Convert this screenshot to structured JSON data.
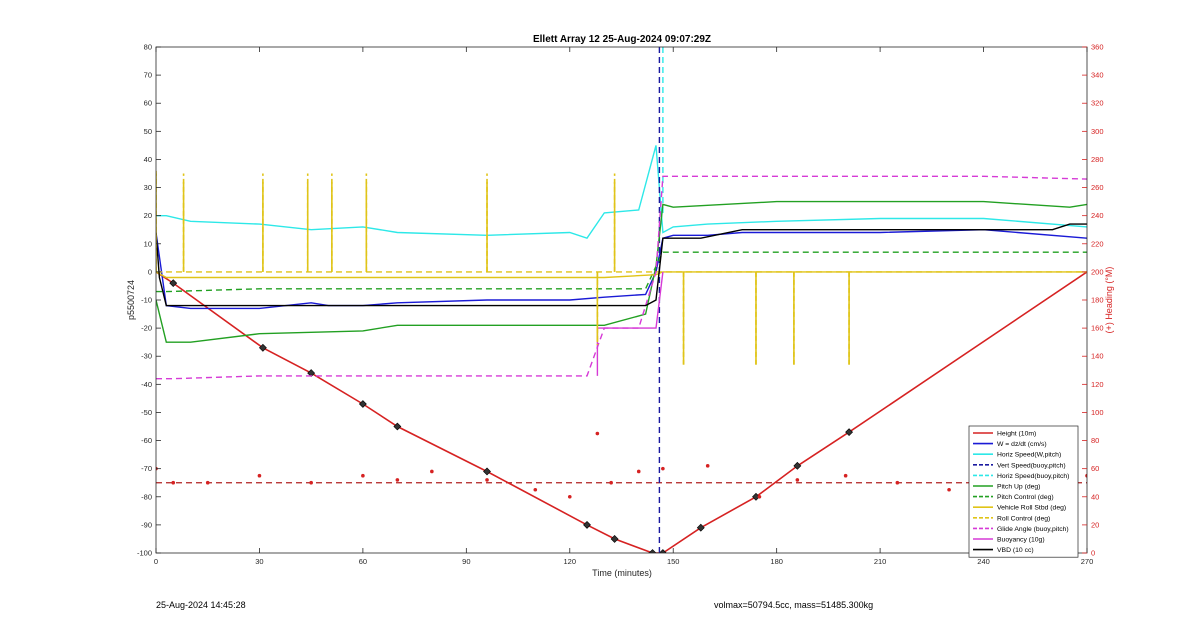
{
  "chart_data": {
    "type": "line",
    "title": "Ellett Array 12 25-Aug-2024 09:07:29Z",
    "xlabel": "Time (minutes)",
    "ylabel": "p5500724",
    "ylabel_right": "(+) Heading (°M)",
    "xlim": [
      0,
      270
    ],
    "ylim": [
      -100,
      80
    ],
    "ylim_right": [
      0,
      360
    ],
    "x_ticks": [
      "0",
      "30",
      "60",
      "90",
      "120",
      "150",
      "180",
      "210",
      "240",
      "270"
    ],
    "y_ticks": [
      "-100",
      "-90",
      "-80",
      "-70",
      "-60",
      "-50",
      "-40",
      "-30",
      "-20",
      "-10",
      "0",
      "10",
      "20",
      "30",
      "40",
      "50",
      "60",
      "70",
      "80"
    ],
    "y_right_ticks": [
      "0",
      "20",
      "40",
      "60",
      "80",
      "100",
      "120",
      "140",
      "160",
      "180",
      "200",
      "220",
      "240",
      "260",
      "280",
      "300",
      "320",
      "340",
      "360"
    ],
    "grid": false,
    "legend_position": "bottom-right",
    "legend": [
      {
        "label": "Height (10m)",
        "color": "#d62222",
        "dash": "solid"
      },
      {
        "label": "W = dz/dt (cm/s)",
        "color": "#1a1ad6",
        "dash": "solid"
      },
      {
        "label": "Horiz Speed(W,pitch)",
        "color": "#2de8e8",
        "dash": "solid"
      },
      {
        "label": "Vert Speed(buoy,pitch)",
        "color": "#1a1aa0",
        "dash": "dashed"
      },
      {
        "label": "Horiz Speed(buoy,pitch)",
        "color": "#2de8e8",
        "dash": "dashed"
      },
      {
        "label": "Pitch Up (deg)",
        "color": "#22a022",
        "dash": "solid"
      },
      {
        "label": "Pitch Control (deg)",
        "color": "#22a022",
        "dash": "dashed"
      },
      {
        "label": "Vehicle Roll Stbd (deg)",
        "color": "#e0c418",
        "dash": "solid"
      },
      {
        "label": "Roll Control (deg)",
        "color": "#e0c418",
        "dash": "dashed"
      },
      {
        "label": "Glide Angle (buoy,pitch)",
        "color": "#d63ad6",
        "dash": "dashed"
      },
      {
        "label": "Buoyancy (10g)",
        "color": "#d63ad6",
        "dash": "solid"
      },
      {
        "label": "VBD (10 cc)",
        "color": "#000000",
        "dash": "solid"
      }
    ],
    "series": [
      {
        "name": "Height (10m)",
        "x": [
          0,
          5,
          31,
          45,
          60,
          70,
          96,
          125,
          133,
          144,
          147,
          158,
          174,
          186,
          201,
          270
        ],
        "y": [
          0,
          -4,
          -27,
          -36,
          -47,
          -55,
          -71,
          -90,
          -95,
          -100,
          -100,
          -91,
          -80,
          -69,
          -57,
          0
        ]
      },
      {
        "name": "W = dz/dt (cm/s)",
        "x": [
          0,
          3,
          10,
          30,
          45,
          50,
          60,
          70,
          96,
          120,
          130,
          142,
          145,
          147,
          150,
          160,
          170,
          180,
          210,
          240,
          270
        ],
        "y": [
          14,
          -12,
          -13,
          -13,
          -11,
          -12,
          -12,
          -11,
          -10,
          -10,
          -9,
          -8,
          0,
          12,
          13,
          13,
          14,
          14,
          14,
          15,
          12
        ]
      },
      {
        "name": "Horiz Speed(W,pitch)",
        "x": [
          0,
          3,
          10,
          30,
          45,
          60,
          70,
          96,
          120,
          125,
          130,
          140,
          145,
          147,
          150,
          160,
          180,
          210,
          240,
          270
        ],
        "y": [
          20,
          20,
          18,
          17,
          15,
          16,
          14,
          13,
          14,
          12,
          21,
          22,
          45,
          14,
          16,
          17,
          18,
          19,
          19,
          16
        ]
      },
      {
        "name": "Vert Speed(buoy,pitch)",
        "x": [
          146,
          146
        ],
        "y": [
          -100,
          80
        ]
      },
      {
        "name": "Horiz Speed(buoy,pitch)",
        "x": [
          147,
          147
        ],
        "y": [
          80,
          20
        ]
      },
      {
        "name": "Pitch Up (deg)",
        "x": [
          0,
          3,
          10,
          30,
          60,
          70,
          96,
          120,
          130,
          142,
          145,
          147,
          150,
          180,
          210,
          240,
          265,
          270
        ],
        "y": [
          -10,
          -25,
          -25,
          -22,
          -21,
          -19,
          -19,
          -19,
          -19,
          -15,
          2,
          24,
          23,
          25,
          25,
          25,
          23,
          24
        ]
      },
      {
        "name": "Pitch Control (deg)",
        "x": [
          0,
          3,
          30,
          60,
          96,
          130,
          142,
          145,
          147,
          150,
          180,
          210,
          240,
          270
        ],
        "y": [
          -7,
          -7,
          -6,
          -6,
          -6,
          -6,
          -6,
          2,
          7,
          7,
          7,
          7,
          7,
          7
        ]
      },
      {
        "name": "Vehicle Roll Stbd (deg)",
        "x": [
          0,
          3,
          10,
          30,
          60,
          96,
          120,
          130,
          145,
          147,
          150,
          200,
          240,
          270
        ],
        "y": [
          0,
          -2,
          -2,
          -2,
          -2,
          -2,
          -2,
          -2,
          -1,
          0,
          0,
          0,
          0,
          0
        ]
      },
      {
        "name": "Roll Control (deg)",
        "x": [
          0,
          3,
          30,
          60,
          96,
          130,
          145,
          147,
          270
        ],
        "y": [
          0,
          0,
          0,
          0,
          0,
          0,
          0,
          0,
          0
        ]
      },
      {
        "name": "Glide Angle (buoy,pitch)",
        "x": [
          0,
          5,
          30,
          60,
          96,
          125,
          130,
          140,
          145,
          147,
          150,
          180,
          210,
          240,
          270
        ],
        "y": [
          -38,
          -38,
          -37,
          -37,
          -37,
          -37,
          -20,
          -20,
          0,
          34,
          34,
          34,
          34,
          34,
          33
        ]
      },
      {
        "name": "Buoyancy (10g)",
        "x": [
          128,
          128,
          145,
          147
        ],
        "y": [
          -37,
          -20,
          -20,
          0
        ]
      },
      {
        "name": "VBD (10 cc)",
        "x": [
          0,
          1,
          3,
          10,
          30,
          60,
          96,
          130,
          142,
          145,
          147,
          158,
          170,
          200,
          260,
          265,
          270
        ],
        "y": [
          14,
          -2,
          -12,
          -12,
          -12,
          -12,
          -12,
          -12,
          -12,
          -10,
          12,
          12,
          15,
          15,
          15,
          17,
          17
        ]
      },
      {
        "name": "Heading (°M)",
        "x": [
          0,
          5,
          15,
          30,
          45,
          60,
          70,
          80,
          96,
          110,
          120,
          128,
          132,
          140,
          147,
          160,
          175,
          186,
          200,
          215,
          230,
          245,
          255,
          262,
          270
        ],
        "y": [
          60,
          50,
          50,
          55,
          50,
          55,
          52,
          58,
          52,
          45,
          40,
          85,
          50,
          58,
          60,
          62,
          40,
          52,
          55,
          50,
          45,
          45,
          38,
          55,
          55
        ]
      }
    ],
    "spike_series": [
      {
        "name": "Vehicle Roll Stbd (deg)",
        "x": [
          0,
          8,
          31,
          44,
          51,
          61,
          96,
          128,
          133,
          153,
          174,
          185,
          201
        ],
        "y": [
          35,
          32,
          32,
          32,
          32,
          32,
          32,
          -25,
          32,
          -33,
          -33,
          -33,
          -33
        ]
      },
      {
        "name": "Roll Control (deg)",
        "x": [
          0,
          8,
          31,
          44,
          51,
          61,
          96,
          128,
          133,
          153,
          174,
          185,
          201
        ],
        "y": [
          37,
          35,
          35,
          35,
          35,
          35,
          35,
          -26,
          35,
          -33,
          -33,
          -33,
          -33
        ]
      }
    ],
    "heading_reference": {
      "name": "Heading reference",
      "y": 50
    }
  },
  "footer": {
    "timestamp": "25-Aug-2024 14:45:28",
    "params": "volmax=50794.5cc, mass=51485.300kg"
  }
}
